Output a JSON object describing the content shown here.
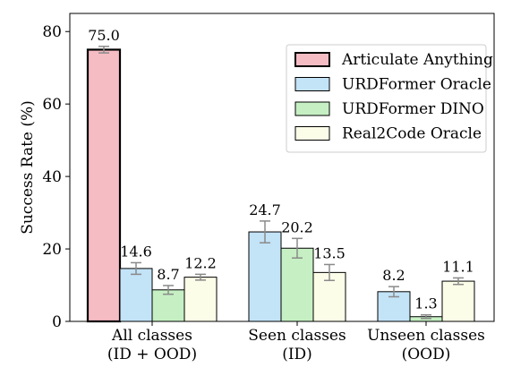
{
  "chart_data": {
    "type": "bar",
    "ylabel": "Success Rate (%)",
    "xlabel": "",
    "ylim": [
      0,
      85
    ],
    "yticks": [
      0,
      20,
      40,
      60,
      80
    ],
    "grid": false,
    "legend_position": "top-right",
    "groups": [
      {
        "label_line1": "All classes",
        "label_line2": "(ID + OOD)"
      },
      {
        "label_line1": "Seen classes",
        "label_line2": "(ID)"
      },
      {
        "label_line1": "Unseen classes",
        "label_line2": "(OOD)"
      }
    ],
    "series": [
      {
        "name": "Articulate Anything",
        "color": "#f6bcc3",
        "bold_edge": true,
        "values": [
          75.0,
          null,
          null
        ],
        "labels": [
          "75.0",
          null,
          null
        ],
        "errors": [
          0.9,
          null,
          null
        ]
      },
      {
        "name": "URDFormer Oracle",
        "color": "#c3e3f7",
        "bold_edge": false,
        "values": [
          14.6,
          24.7,
          8.2
        ],
        "labels": [
          "14.6",
          "24.7",
          "8.2"
        ],
        "errors": [
          1.6,
          3.0,
          1.4
        ]
      },
      {
        "name": "URDFormer DINO",
        "color": "#c6f0c3",
        "bold_edge": false,
        "values": [
          8.7,
          20.2,
          1.3
        ],
        "labels": [
          "8.7",
          "20.2",
          "1.3"
        ],
        "errors": [
          1.2,
          2.7,
          0.5
        ]
      },
      {
        "name": "Real2Code Oracle",
        "color": "#fcfde8",
        "bold_edge": false,
        "values": [
          12.2,
          13.5,
          11.1
        ],
        "labels": [
          "12.2",
          "13.5",
          "11.1"
        ],
        "errors": [
          0.8,
          2.2,
          0.9
        ]
      }
    ]
  }
}
